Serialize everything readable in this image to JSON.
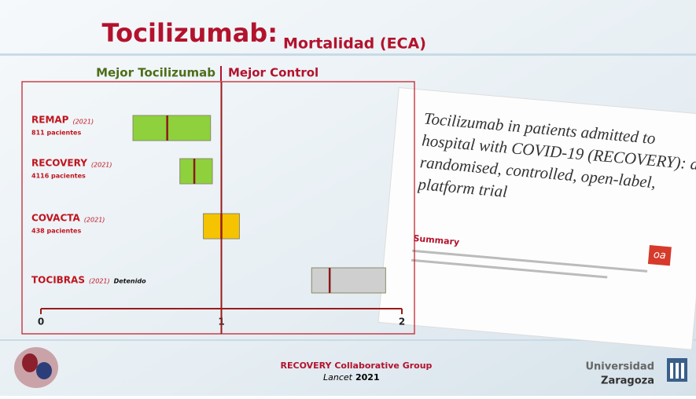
{
  "chart_data": {
    "type": "forest",
    "title": "Tocilizumab:",
    "subtitle": "Mortalidad (ECA)",
    "left_label": "Mejor Tocilizumab",
    "right_label": "Mejor Control",
    "categories": [
      "REMAP",
      "RECOVERY",
      "COVACTA",
      "TOCIBRAS"
    ],
    "years": [
      "(2021)",
      "(2021)",
      "(2021)",
      "(2021)"
    ],
    "details": [
      "811 pacientes",
      "4116 pacientes",
      "438 pacientes",
      "Detenido"
    ],
    "colors": [
      "#8ed13c",
      "#8ed13c",
      "#f5c300",
      "#cfcfcf"
    ],
    "estimates": [
      0.7,
      0.85,
      1.0,
      1.6
    ],
    "lower": [
      0.51,
      0.77,
      0.9,
      1.5
    ],
    "upper": [
      0.94,
      0.95,
      1.1,
      1.91
    ],
    "xlim": [
      0,
      2
    ],
    "xticks": [
      0,
      1,
      2
    ]
  },
  "paper": {
    "title": "Tocilizumab in patients admitted to hospital with COVID-19 (RECOVERY): a randomised, controlled, open-label, platform trial",
    "section": "Summary",
    "badge": "oa"
  },
  "footer": {
    "authors": "RECOVERY Collaborative Group",
    "journal": "Lancet",
    "year": "2021",
    "university": "Universidad",
    "city": "Zaragoza"
  }
}
